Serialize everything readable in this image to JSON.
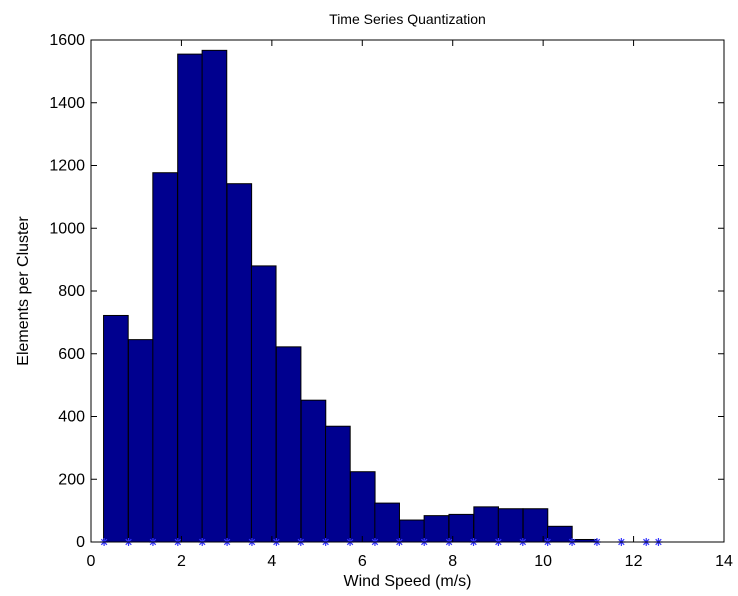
{
  "chart_data": {
    "type": "bar",
    "title": "Time Series Quantization",
    "xlabel": "Wind Speed (m/s)",
    "ylabel": "Elements per Cluster",
    "xlim": [
      0,
      14
    ],
    "ylim": [
      0,
      1600
    ],
    "xticks": [
      0,
      2,
      4,
      6,
      8,
      10,
      12,
      14
    ],
    "yticks": [
      0,
      200,
      400,
      600,
      800,
      1000,
      1200,
      1400,
      1600
    ],
    "bin_width": 0.545,
    "bin_centers": [
      0.55,
      1.1,
      1.64,
      2.19,
      2.73,
      3.28,
      3.82,
      4.37,
      4.92,
      5.46,
      6.01,
      6.55,
      7.1,
      7.64,
      8.19,
      8.74,
      9.28,
      9.83,
      10.37,
      10.92,
      11.46,
      12.01
    ],
    "values": [
      722,
      645,
      1177,
      1555,
      1567,
      1142,
      880,
      622,
      452,
      369,
      224,
      124,
      70,
      84,
      88,
      112,
      106,
      106,
      50,
      8,
      0,
      0
    ],
    "marker_x": [
      0.29,
      0.83,
      1.37,
      1.92,
      2.46,
      3.01,
      3.56,
      4.1,
      4.64,
      5.19,
      5.73,
      6.28,
      6.82,
      7.37,
      7.92,
      8.46,
      9.01,
      9.55,
      10.1,
      10.64,
      11.19,
      11.73,
      12.28,
      12.55
    ],
    "grid": false,
    "colors": {
      "bar_fill": "#00008F",
      "bar_edge": "#000000",
      "marker": "#3333ff",
      "axis": "#000000",
      "background": "#ffffff"
    }
  }
}
